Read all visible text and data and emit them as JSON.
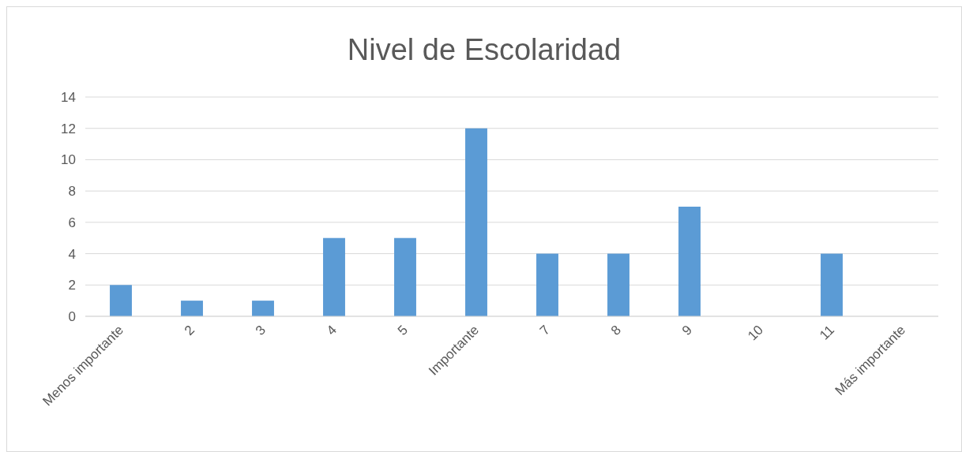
{
  "chart_data": {
    "type": "bar",
    "title": "Nivel de Escolaridad",
    "categories": [
      "Menos importante",
      "2",
      "3",
      "4",
      "5",
      "Importante",
      "7",
      "8",
      "9",
      "10",
      "11",
      "Más importante"
    ],
    "values": [
      2,
      1,
      1,
      5,
      5,
      12,
      4,
      4,
      7,
      0,
      4,
      0
    ],
    "color": "#5b9bd5",
    "ylim": [
      0,
      14
    ],
    "yticks": [
      0,
      2,
      4,
      6,
      8,
      10,
      12,
      14
    ],
    "grid": "y"
  }
}
